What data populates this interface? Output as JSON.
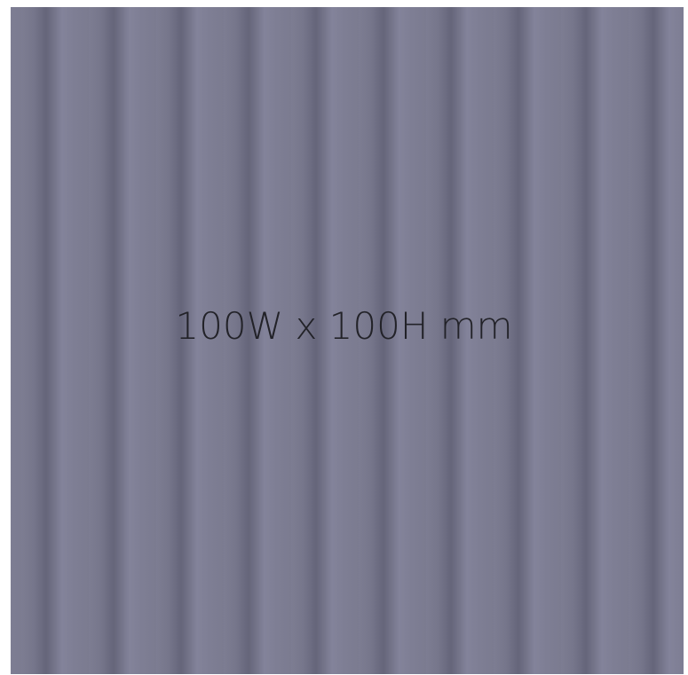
{
  "label": "100W x 100H mm"
}
